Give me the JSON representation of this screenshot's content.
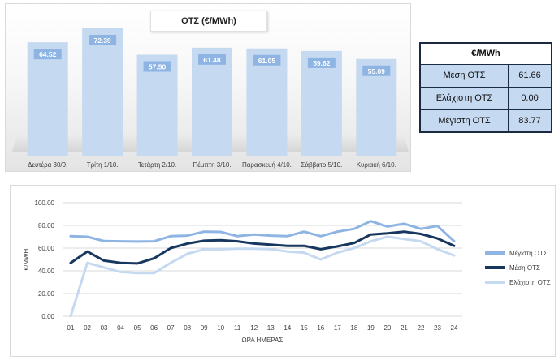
{
  "colors": {
    "bar": "#c5d9f1",
    "bar_label_bg": "#8eb4e3",
    "max_line": "#8eb4e3",
    "avg_line": "#17375e",
    "min_line": "#c5d9f1",
    "table_border": "#1b2a41",
    "table_cell": "#c5d9f1"
  },
  "stats_table": {
    "header": "€/MWh",
    "rows": [
      {
        "label": "Μέση ΟΤΣ",
        "value": "61.66"
      },
      {
        "label": "Ελάχιστη ΟΤΣ",
        "value": "0.00"
      },
      {
        "label": "Μέγιστη ΟΤΣ",
        "value": "83.77"
      }
    ]
  },
  "chart_data": [
    {
      "type": "bar",
      "title": "ΟΤΣ (€/MWh)",
      "categories": [
        "Δευτέρα 30/9.",
        "Τρίτη 1/10.",
        "Τετάρτη 2/10.",
        "Πέμπτη 3/10.",
        "Παρασκευή 4/10.",
        "Σάββατο 5/10.",
        "Κυριακή 6/10."
      ],
      "values": [
        64.52,
        72.39,
        57.5,
        61.48,
        61.05,
        59.62,
        55.09
      ],
      "data_labels": [
        "64.52",
        "72.39",
        "57.50",
        "61.48",
        "61.05",
        "59.62",
        "55.09"
      ],
      "ylim": [
        0,
        72.39
      ],
      "grid": false
    },
    {
      "type": "line",
      "xlabel": "ΩΡΑ ΗΜΕΡΑΣ",
      "ylabel": "€/MWH",
      "x": [
        "01",
        "02",
        "03",
        "04",
        "05",
        "06",
        "07",
        "08",
        "09",
        "10",
        "11",
        "12",
        "13",
        "14",
        "15",
        "16",
        "17",
        "18",
        "19",
        "20",
        "21",
        "22",
        "23",
        "24"
      ],
      "y_ticks": [
        "0.00",
        "20.00",
        "40.00",
        "60.00",
        "80.00",
        "100.00"
      ],
      "ylim": [
        0,
        100
      ],
      "grid": true,
      "legend_position": "right",
      "series": [
        {
          "name": "Μέγιστη ΟΤΣ",
          "values": [
            70.5,
            70.0,
            66.2,
            66.0,
            65.8,
            66.0,
            70.5,
            71.0,
            74.5,
            74.3,
            70.5,
            72.0,
            71.0,
            70.5,
            74.5,
            70.5,
            74.5,
            77.0,
            83.77,
            79.0,
            81.5,
            77.0,
            79.5,
            66.0
          ]
        },
        {
          "name": "Μέση ΟΤΣ",
          "values": [
            47.0,
            57.0,
            49.0,
            47.0,
            46.5,
            51.0,
            60.0,
            64.0,
            66.5,
            67.0,
            66.0,
            64.0,
            63.0,
            62.0,
            62.0,
            59.0,
            61.5,
            64.5,
            72.0,
            73.0,
            74.5,
            72.5,
            68.5,
            62.0
          ]
        },
        {
          "name": "Ελάχιστη ΟΤΣ",
          "values": [
            0.0,
            47.0,
            43.0,
            39.0,
            38.0,
            38.0,
            47.0,
            55.0,
            59.0,
            59.0,
            59.5,
            59.5,
            59.0,
            57.0,
            56.0,
            50.0,
            56.0,
            60.0,
            66.0,
            70.0,
            68.0,
            66.0,
            59.0,
            53.5
          ]
        }
      ]
    }
  ]
}
